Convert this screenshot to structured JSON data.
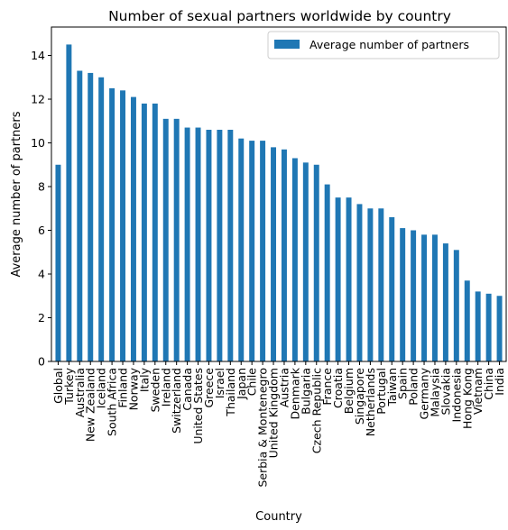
{
  "chart_data": {
    "type": "bar",
    "title": "Number of sexual partners worldwide by country",
    "xlabel": "Country",
    "ylabel": "Average number of partners",
    "ylim": [
      0,
      15.3
    ],
    "yticks": [
      0,
      2,
      4,
      6,
      8,
      10,
      12,
      14
    ],
    "grid": false,
    "legend_position": "top-right",
    "bar_color": "#1f77b4",
    "categories": [
      "Global",
      "Turkey",
      "Australia",
      "New Zealand",
      "Iceland",
      "South Africa",
      "Finland",
      "Norway",
      "Italy",
      "Sweden",
      "Ireland",
      "Switzerland",
      "Canada",
      "United States",
      "Greece",
      "Israel",
      "Thailand",
      "Japan",
      "Chile",
      "Serbia & Montenegro",
      "United Kingdom",
      "Austria",
      "Denmark",
      "Bulgaria",
      "Czech Republic",
      "France",
      "Croatia",
      "Belgium",
      "Singapore",
      "Netherlands",
      "Portugal",
      "Taiwan",
      "Spain",
      "Poland",
      "Germany",
      "Malaysia",
      "Slovakia",
      "Indonesia",
      "Hong Kong",
      "Vietnam",
      "China",
      "India"
    ],
    "series": [
      {
        "name": "Average number of partners",
        "values": [
          9.0,
          14.5,
          13.3,
          13.2,
          13.0,
          12.5,
          12.4,
          12.1,
          11.8,
          11.8,
          11.1,
          11.1,
          10.7,
          10.7,
          10.6,
          10.6,
          10.6,
          10.2,
          10.1,
          10.1,
          9.8,
          9.7,
          9.3,
          9.1,
          9.0,
          8.1,
          7.5,
          7.5,
          7.2,
          7.0,
          7.0,
          6.6,
          6.1,
          6.0,
          5.8,
          5.8,
          5.4,
          5.1,
          3.7,
          3.2,
          3.1,
          3.0
        ]
      }
    ]
  }
}
